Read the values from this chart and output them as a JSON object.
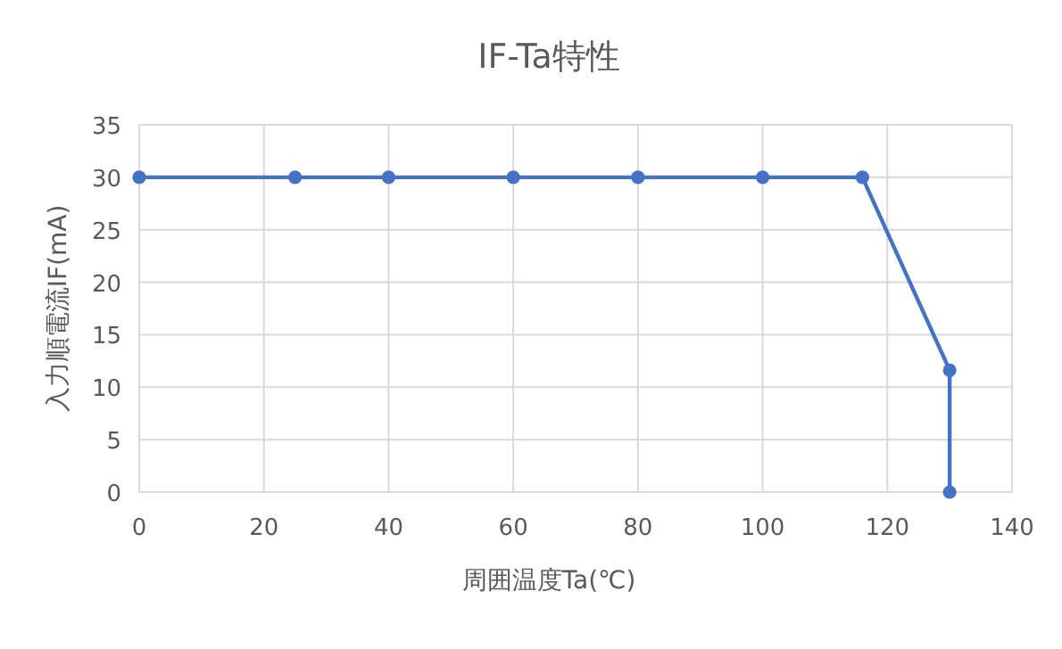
{
  "chart_data": {
    "type": "line",
    "title": "IF-Ta特性",
    "xlabel": "周囲温度Ta(℃)",
    "ylabel": "入力順電流IF(mA)",
    "x": [
      0,
      25,
      40,
      60,
      80,
      100,
      116,
      130,
      130
    ],
    "series": [
      {
        "color": "#4472c4",
        "values": [
          30,
          30,
          30,
          30,
          30,
          30,
          30,
          11.6,
          0
        ]
      }
    ],
    "xlim": [
      0,
      140
    ],
    "xticks": [
      0,
      20,
      40,
      60,
      80,
      100,
      120,
      140
    ],
    "ylim": [
      0,
      35
    ],
    "yticks": [
      0,
      5,
      10,
      15,
      20,
      25,
      30,
      35
    ],
    "grid": true,
    "marker": "circle",
    "line_style": "solid"
  }
}
